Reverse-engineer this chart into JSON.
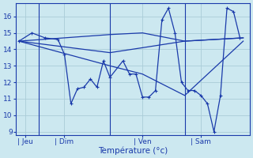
{
  "background_color": "#cce8f0",
  "grid_color": "#aaccd8",
  "line_color": "#1a3aaa",
  "xlabel": "Température (°c)",
  "ylim": [
    8.8,
    16.8
  ],
  "yticks": [
    9,
    10,
    11,
    12,
    13,
    14,
    15,
    16
  ],
  "xlim": [
    0,
    36
  ],
  "day_labels": [
    "Jeu",
    "Dim",
    "Ven",
    "Sam"
  ],
  "day_positions": [
    1.5,
    7.5,
    19.5,
    28.5
  ],
  "vline_positions": [
    3.5,
    14.5,
    26.0
  ],
  "series1_x": [
    0.5,
    2.5,
    4.5,
    6.5,
    7.5,
    8.5,
    9.5,
    10.5,
    11.5,
    12.5,
    13.5,
    14.5,
    16.5,
    17.5,
    18.5,
    19.5,
    20.5,
    21.5,
    22.5,
    23.5,
    24.5,
    25.5,
    26.5,
    27.5,
    28.5,
    29.5,
    30.5,
    31.5,
    32.5,
    33.5,
    34.5
  ],
  "series1_y": [
    14.5,
    15.0,
    14.7,
    14.6,
    13.7,
    10.7,
    11.6,
    11.7,
    12.2,
    11.7,
    13.3,
    12.3,
    13.3,
    12.5,
    12.5,
    11.1,
    11.1,
    11.5,
    15.8,
    16.5,
    15.0,
    12.0,
    11.5,
    11.5,
    11.2,
    10.7,
    9.0,
    11.2,
    16.5,
    16.3,
    14.7
  ],
  "series2_x": [
    0.5,
    14.5,
    19.5,
    26.0,
    35.0
  ],
  "series2_y": [
    14.5,
    14.9,
    15.0,
    14.5,
    14.7
  ],
  "series3_x": [
    0.5,
    14.5,
    19.5,
    26.0,
    35.0
  ],
  "series3_y": [
    14.5,
    13.8,
    14.1,
    14.5,
    14.7
  ],
  "series4_x": [
    0.5,
    14.5,
    19.5,
    26.0,
    35.0
  ],
  "series4_y": [
    14.5,
    13.0,
    12.5,
    11.2,
    14.5
  ]
}
